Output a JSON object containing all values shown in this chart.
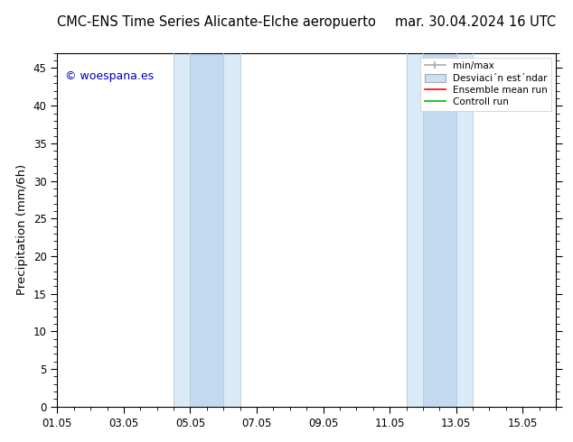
{
  "title_left": "CMC-ENS Time Series Alicante-Elche aeropuerto",
  "title_right": "mar. 30.04.2024 16 UTC",
  "ylabel": "Precipitation (mm/6h)",
  "ylim": [
    0,
    47
  ],
  "yticks": [
    0,
    5,
    10,
    15,
    20,
    25,
    30,
    35,
    40,
    45
  ],
  "xtick_labels": [
    "01.05",
    "03.05",
    "05.05",
    "07.05",
    "09.05",
    "11.05",
    "13.05",
    "15.05"
  ],
  "xtick_positions": [
    0,
    2,
    4,
    6,
    8,
    10,
    12,
    14
  ],
  "xlim": [
    0,
    15
  ],
  "shaded_outer": [
    {
      "x_start": 3.5,
      "x_end": 5.5
    },
    {
      "x_start": 10.5,
      "x_end": 12.5
    }
  ],
  "shaded_inner": [
    {
      "x_start": 4.0,
      "x_end": 5.0
    },
    {
      "x_start": 11.0,
      "x_end": 12.0
    }
  ],
  "outer_color": "#daeaf7",
  "inner_color": "#c2d9ef",
  "vline_color": "#b0ccde",
  "watermark_text": "© woespana.es",
  "watermark_color": "#0000bb",
  "legend_line1": "min/max",
  "legend_line2": "Desviaci´n est´ndar",
  "legend_line3": "Ensemble mean run",
  "legend_line4": "Controll run",
  "legend_color1": "#aaaaaa",
  "legend_color2": "#cce0f5",
  "legend_color3": "#ff0000",
  "legend_color4": "#00bb00",
  "bg_color": "#ffffff",
  "title_fontsize": 10.5,
  "tick_fontsize": 8.5,
  "ylabel_fontsize": 9.5,
  "watermark_fontsize": 9,
  "legend_fontsize": 7.5
}
